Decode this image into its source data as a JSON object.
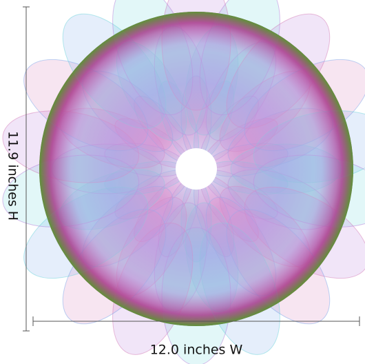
{
  "dimensions": {
    "height_label": "11.9 inches H",
    "width_label": "12.0 inches W"
  }
}
